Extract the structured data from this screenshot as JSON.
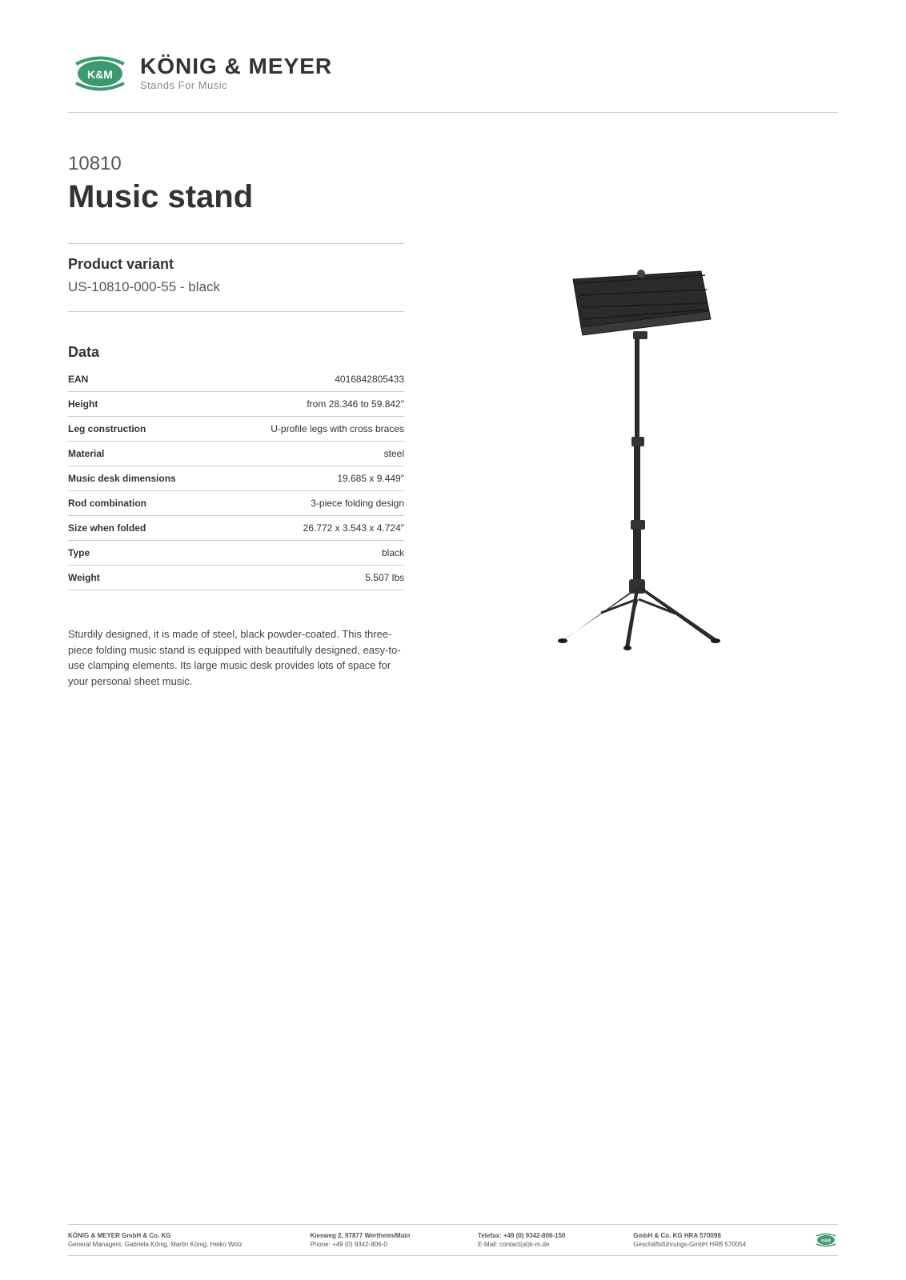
{
  "logo": {
    "brand": "KÖNIG & MEYER",
    "tagline": "Stands For Music",
    "icon_name": "km-logo",
    "primary_color": "#3d9970",
    "text_color": "#333333"
  },
  "product": {
    "number": "10810",
    "title": "Music stand"
  },
  "variant": {
    "heading": "Product variant",
    "text": "US-10810-000-55 - black"
  },
  "data_section": {
    "heading": "Data",
    "rows": [
      {
        "label": "EAN",
        "value": "4016842805433"
      },
      {
        "label": "Height",
        "value": "from 28.346 to 59.842\""
      },
      {
        "label": "Leg construction",
        "value": "U-profile legs with cross braces"
      },
      {
        "label": "Material",
        "value": "steel"
      },
      {
        "label": "Music desk dimensions",
        "value": "19.685 x 9.449\""
      },
      {
        "label": "Rod combination",
        "value": "3-piece folding design"
      },
      {
        "label": "Size when folded",
        "value": "26.772 x 3.543 x 4.724\""
      },
      {
        "label": "Type",
        "value": "black"
      },
      {
        "label": "Weight",
        "value": "5.507 lbs"
      }
    ]
  },
  "description": "Sturdily designed, it is made of steel, black powder-coated. This three-piece folding music stand is equipped with beautifully designed, easy-to-use clamping elements. Its large music desk provides lots of space for your personal sheet music.",
  "footer": {
    "col1": {
      "line1": "KÖNIG & MEYER GmbH & Co. KG",
      "line2": "General Managers: Gabriela König, Martin König, Heiko Wolz"
    },
    "col2": {
      "line1": "Kiesweg 2, 97877 Wertheim/Main",
      "line2": "Phone:   +49 (0) 9342-806-0"
    },
    "col3": {
      "line1": "Telefax: +49 (0) 9342-806-150",
      "line2": "E-Mail: contact(at)k-m.de"
    },
    "col4": {
      "line1": "GmbH & Co. KG HRA 570098",
      "line2": "Geschäftsführungs-GmbH HRB 570054"
    }
  },
  "colors": {
    "text_primary": "#333333",
    "text_secondary": "#555555",
    "divider": "#cccccc",
    "accent": "#3d9970"
  }
}
